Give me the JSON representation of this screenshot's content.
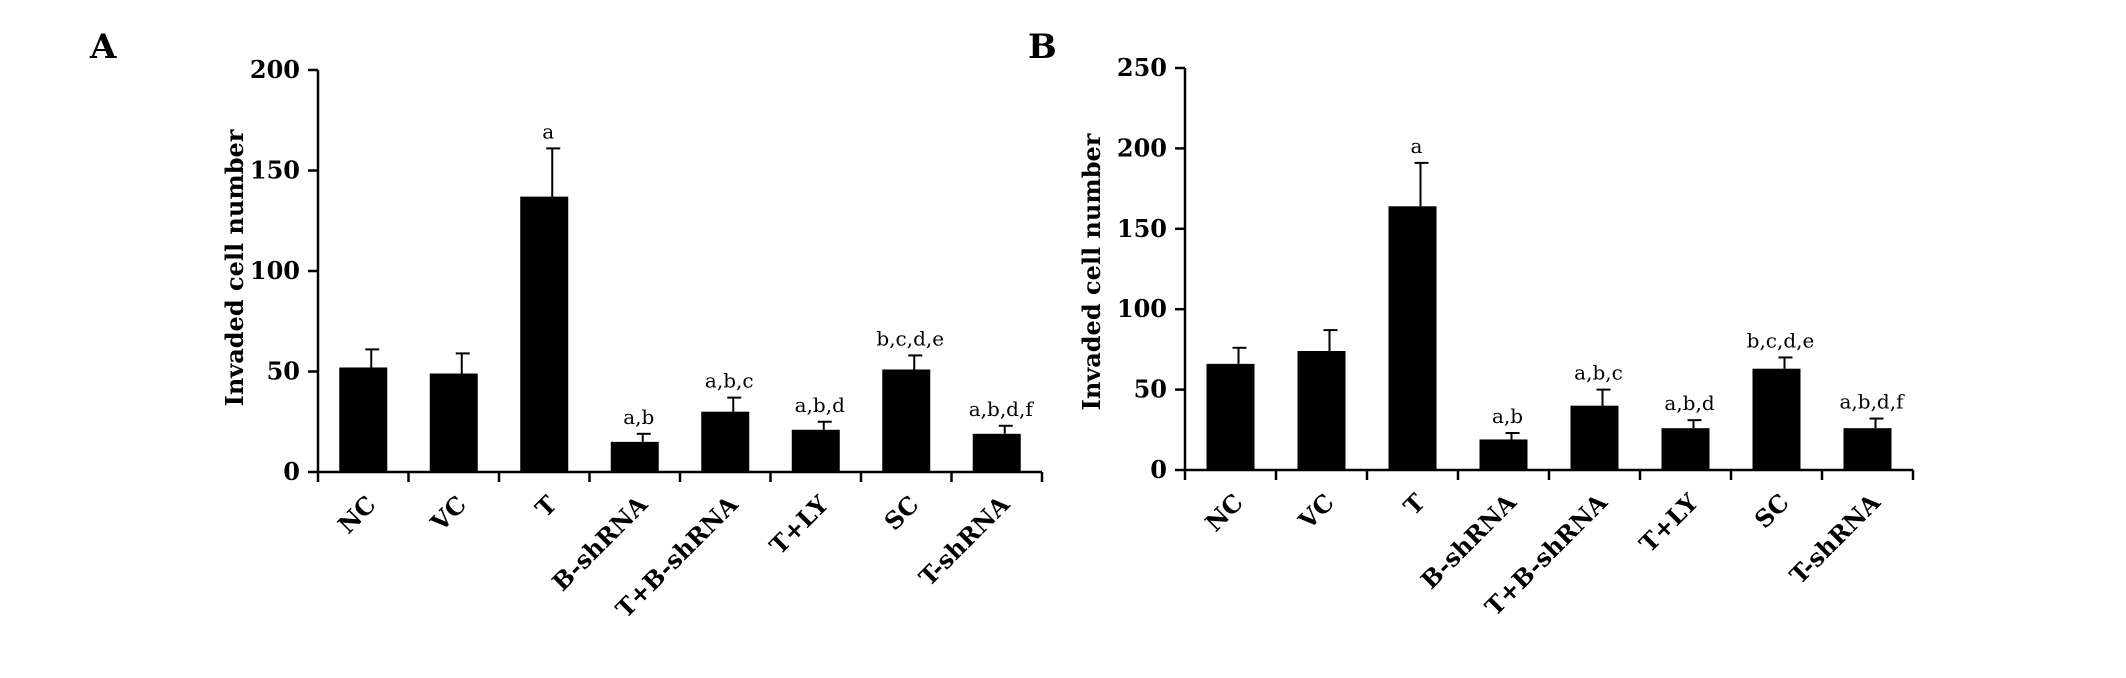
{
  "chart_data": [
    {
      "panel": "A",
      "type": "bar",
      "title": "",
      "xlabel": "",
      "ylabel": "Invaded cell number",
      "ylim": [
        0,
        200
      ],
      "yticks": [
        0,
        50,
        100,
        150,
        200
      ],
      "categories": [
        "NC",
        "VC",
        "T",
        "B-shRNA",
        "T+B-shRNA",
        "T+LY",
        "SC",
        "T-shRNA"
      ],
      "values": [
        52,
        49,
        137,
        15,
        30,
        21,
        51,
        19
      ],
      "errors": [
        9,
        10,
        24,
        4,
        7,
        4,
        7,
        4
      ],
      "annotations": [
        "",
        "",
        "a",
        "a,b",
        "a,b,c",
        "a,b,d",
        "b,c,d,e",
        "a,b,d,f"
      ],
      "bar_color": "#000000",
      "grid": false
    },
    {
      "panel": "B",
      "type": "bar",
      "title": "",
      "xlabel": "",
      "ylabel": "Invaded cell number",
      "ylim": [
        0,
        250
      ],
      "yticks": [
        0,
        50,
        100,
        150,
        200,
        250
      ],
      "categories": [
        "NC",
        "VC",
        "T",
        "B-shRNA",
        "T+B-shRNA",
        "T+LY",
        "SC",
        "T-shRNA"
      ],
      "values": [
        66,
        74,
        164,
        19,
        40,
        26,
        63,
        26
      ],
      "errors": [
        10,
        13,
        27,
        4,
        10,
        5,
        7,
        6
      ],
      "annotations": [
        "",
        "",
        "a",
        "a,b",
        "a,b,c",
        "a,b,d",
        "b,c,d,e",
        "a,b,d,f"
      ],
      "bar_color": "#000000",
      "grid": false
    }
  ]
}
